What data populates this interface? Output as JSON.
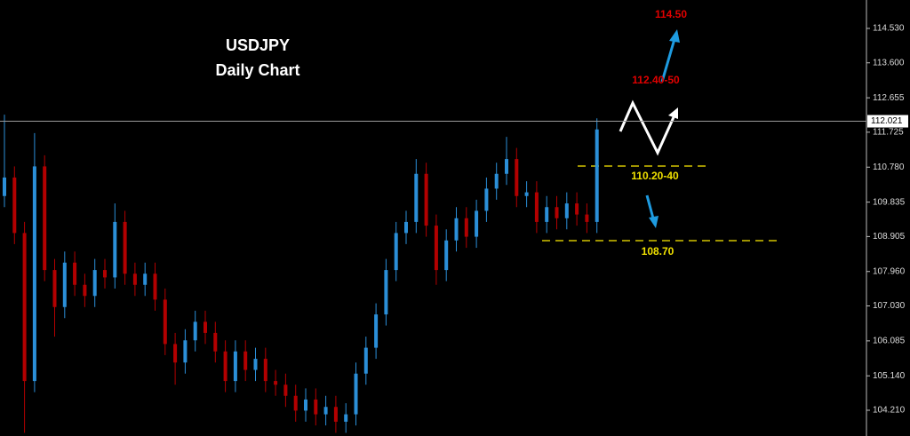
{
  "chart_data": {
    "type": "ohlc",
    "title": "USDJPY",
    "subtitle": "Daily Chart",
    "up_color": "#2b8fd8",
    "down_color": "#b30000",
    "ylim": [
      103.514,
      115.298
    ],
    "yticks": [
      {
        "value": 114.53,
        "label": "114.530"
      },
      {
        "value": 113.6,
        "label": "113.600"
      },
      112.655,
      111.725,
      {
        "value": 110.78,
        "label": "110.780"
      },
      109.835,
      108.905,
      {
        "value": 107.96,
        "label": "107.960"
      },
      {
        "value": 107.03,
        "label": "107.030"
      },
      106.085,
      {
        "value": 105.14,
        "label": "105.140"
      },
      {
        "value": 104.21,
        "label": "104.210"
      }
    ],
    "current_price": 112.021,
    "open": [
      110.0,
      110.5,
      109.0,
      105.0,
      110.8,
      108.0,
      107.0,
      108.2,
      107.6,
      107.3,
      108.0,
      107.8,
      109.3,
      107.9,
      107.6,
      107.9,
      107.2,
      106.0,
      105.5,
      106.1,
      106.6,
      106.3,
      105.8,
      105.0,
      105.8,
      105.3,
      105.6,
      105.0,
      104.9,
      104.6,
      104.2,
      104.5,
      104.1,
      104.3,
      103.9,
      104.1,
      105.2,
      105.9,
      106.8,
      108.0,
      109.0,
      109.3,
      110.6,
      109.2,
      108.0,
      108.8,
      109.4,
      108.9,
      109.6,
      110.2,
      110.6,
      111.0,
      110.0,
      110.1,
      109.3,
      109.7,
      109.4,
      109.8,
      109.5,
      109.3
    ],
    "high": [
      112.2,
      110.8,
      109.3,
      111.7,
      111.1,
      108.3,
      108.5,
      108.5,
      107.9,
      108.3,
      108.3,
      109.8,
      109.6,
      108.2,
      108.2,
      108.2,
      107.5,
      106.3,
      106.4,
      106.9,
      106.9,
      106.6,
      106.1,
      106.1,
      106.1,
      105.9,
      105.9,
      105.3,
      105.2,
      104.9,
      104.8,
      104.8,
      104.6,
      104.6,
      104.4,
      105.5,
      106.2,
      107.1,
      108.3,
      109.3,
      109.6,
      111.0,
      110.9,
      109.5,
      109.1,
      109.7,
      109.7,
      109.9,
      110.5,
      110.9,
      111.6,
      111.3,
      110.4,
      110.4,
      110.0,
      110.0,
      110.1,
      110.1,
      109.8,
      112.1
    ],
    "low": [
      109.7,
      108.7,
      103.6,
      104.7,
      107.7,
      106.2,
      106.7,
      107.3,
      107.0,
      107.0,
      107.5,
      107.5,
      107.6,
      107.3,
      107.3,
      106.9,
      105.7,
      104.9,
      105.2,
      105.8,
      106.0,
      105.5,
      104.7,
      104.7,
      105.0,
      105.0,
      104.7,
      104.6,
      104.3,
      103.9,
      103.9,
      103.8,
      103.8,
      103.6,
      103.6,
      103.8,
      104.9,
      105.6,
      106.5,
      107.7,
      108.7,
      109.0,
      108.9,
      107.6,
      107.7,
      108.5,
      108.6,
      108.6,
      109.3,
      109.9,
      110.3,
      109.7,
      109.7,
      109.0,
      109.0,
      109.1,
      109.1,
      109.2,
      109.0,
      109.0
    ],
    "close": [
      110.5,
      109.0,
      105.0,
      110.8,
      108.0,
      107.0,
      108.2,
      107.6,
      107.3,
      108.0,
      107.8,
      109.3,
      107.9,
      107.6,
      107.9,
      107.2,
      106.0,
      105.5,
      106.1,
      106.6,
      106.3,
      105.8,
      105.0,
      105.8,
      105.3,
      105.6,
      105.0,
      104.9,
      104.6,
      104.2,
      104.5,
      104.1,
      104.3,
      103.9,
      104.1,
      105.2,
      105.9,
      106.8,
      108.0,
      109.0,
      109.3,
      110.6,
      109.2,
      108.0,
      108.8,
      109.4,
      108.9,
      109.6,
      110.2,
      110.6,
      111.0,
      110.0,
      110.1,
      109.3,
      109.7,
      109.4,
      109.8,
      109.5,
      109.3,
      111.8
    ],
    "annotations": [
      "114.50",
      "112.40-50",
      "110.20-40",
      "108.70"
    ]
  }
}
